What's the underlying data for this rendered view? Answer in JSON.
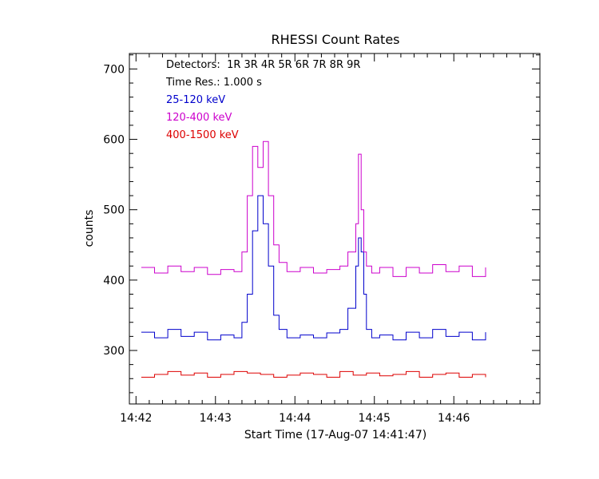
{
  "chart_data": {
    "type": "line",
    "title": "RHESSI Count Rates",
    "xlabel": "Start Time (17-Aug-07 14:41:47)",
    "ylabel": "counts",
    "x_unit": "HH:MM",
    "xlim": [
      "14:41:55",
      "14:47:05"
    ],
    "ylim": [
      224,
      722
    ],
    "x_ticks": [
      "14:42",
      "14:43",
      "14:44",
      "14:45",
      "14:46"
    ],
    "y_ticks": [
      300,
      400,
      500,
      600,
      700
    ],
    "time_resolution_s": 1.0,
    "annotations": {
      "detectors": "Detectors:  1R 3R 4R 5R 6R 7R 8R 9R",
      "time_res": "Time Res.: 1.000 s"
    },
    "legend_position": "top-left",
    "series": [
      {
        "name": "25-120 keV",
        "color": "#0000cc",
        "x": [
          "14:42:04",
          "14:42:14",
          "14:42:24",
          "14:42:34",
          "14:42:44",
          "14:42:54",
          "14:43:04",
          "14:43:14",
          "14:43:20",
          "14:43:24",
          "14:43:28",
          "14:43:32",
          "14:43:36",
          "14:43:40",
          "14:43:44",
          "14:43:48",
          "14:43:54",
          "14:44:04",
          "14:44:14",
          "14:44:24",
          "14:44:34",
          "14:44:40",
          "14:44:46",
          "14:44:48",
          "14:44:50",
          "14:44:52",
          "14:44:54",
          "14:44:58",
          "14:45:04",
          "14:45:14",
          "14:45:24",
          "14:45:34",
          "14:45:44",
          "14:45:54",
          "14:46:04",
          "14:46:14",
          "14:46:24"
        ],
        "values": [
          326,
          318,
          330,
          320,
          326,
          315,
          322,
          318,
          340,
          380,
          470,
          520,
          480,
          420,
          350,
          330,
          318,
          322,
          318,
          325,
          330,
          360,
          420,
          460,
          440,
          380,
          330,
          318,
          322,
          315,
          326,
          318,
          330,
          320,
          326,
          315,
          326
        ]
      },
      {
        "name": "120-400 keV",
        "color": "#cc00cc",
        "x": [
          "14:42:04",
          "14:42:14",
          "14:42:24",
          "14:42:34",
          "14:42:44",
          "14:42:54",
          "14:43:04",
          "14:43:14",
          "14:43:20",
          "14:43:24",
          "14:43:28",
          "14:43:32",
          "14:43:36",
          "14:43:40",
          "14:43:44",
          "14:43:48",
          "14:43:54",
          "14:44:04",
          "14:44:14",
          "14:44:24",
          "14:44:34",
          "14:44:40",
          "14:44:46",
          "14:44:48",
          "14:44:50",
          "14:44:52",
          "14:44:54",
          "14:44:58",
          "14:45:04",
          "14:45:14",
          "14:45:24",
          "14:45:34",
          "14:45:44",
          "14:45:54",
          "14:46:04",
          "14:46:14",
          "14:46:24"
        ],
        "values": [
          418,
          410,
          420,
          412,
          418,
          408,
          415,
          412,
          440,
          520,
          590,
          560,
          597,
          520,
          450,
          425,
          412,
          418,
          410,
          415,
          420,
          440,
          480,
          579,
          500,
          440,
          420,
          410,
          418,
          405,
          418,
          410,
          422,
          412,
          420,
          405,
          418
        ]
      },
      {
        "name": "400-1500 keV",
        "color": "#dd0000",
        "x": [
          "14:42:04",
          "14:42:14",
          "14:42:24",
          "14:42:34",
          "14:42:44",
          "14:42:54",
          "14:43:04",
          "14:43:14",
          "14:43:24",
          "14:43:34",
          "14:43:44",
          "14:43:54",
          "14:44:04",
          "14:44:14",
          "14:44:24",
          "14:44:34",
          "14:44:44",
          "14:44:54",
          "14:45:04",
          "14:45:14",
          "14:45:24",
          "14:45:34",
          "14:45:44",
          "14:45:54",
          "14:46:04",
          "14:46:14",
          "14:46:24"
        ],
        "values": [
          262,
          266,
          270,
          265,
          268,
          262,
          266,
          270,
          268,
          266,
          262,
          265,
          268,
          266,
          262,
          270,
          265,
          268,
          264,
          266,
          270,
          262,
          266,
          268,
          262,
          266,
          262
        ]
      }
    ]
  }
}
